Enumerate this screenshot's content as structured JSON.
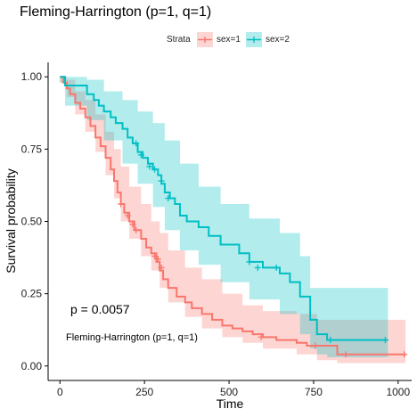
{
  "chart_data": {
    "type": "line",
    "title": "Fleming-Harrington (p=1, q=1)",
    "xlabel": "Time",
    "ylabel": "Survival probability",
    "xlim": [
      -35,
      1040
    ],
    "ylim": [
      -0.05,
      1.05
    ],
    "x_ticks": [
      0,
      250,
      500,
      750,
      1000
    ],
    "y_ticks": [
      0.0,
      0.25,
      0.5,
      0.75,
      1.0
    ],
    "y_tick_labels": [
      "0.00",
      "0.25",
      "0.50",
      "0.75",
      "1.00"
    ],
    "grid": false,
    "legend": {
      "title": "Strata",
      "position": "top"
    },
    "annotations": {
      "p_value": "p = 0.0057",
      "method": "Fleming-Harrington (p=1, q=1)"
    },
    "series": [
      {
        "name": "sex=1",
        "color": "#F8766D",
        "step": [
          [
            0,
            1.0
          ],
          [
            10,
            0.98
          ],
          [
            20,
            0.96
          ],
          [
            30,
            0.94
          ],
          [
            45,
            0.91
          ],
          [
            60,
            0.89
          ],
          [
            75,
            0.86
          ],
          [
            90,
            0.83
          ],
          [
            105,
            0.79
          ],
          [
            120,
            0.76
          ],
          [
            135,
            0.72
          ],
          [
            150,
            0.68
          ],
          [
            160,
            0.64
          ],
          [
            170,
            0.6
          ],
          [
            180,
            0.56
          ],
          [
            190,
            0.53
          ],
          [
            205,
            0.5
          ],
          [
            220,
            0.47
          ],
          [
            240,
            0.44
          ],
          [
            255,
            0.41
          ],
          [
            270,
            0.39
          ],
          [
            285,
            0.36
          ],
          [
            295,
            0.33
          ],
          [
            305,
            0.3
          ],
          [
            320,
            0.27
          ],
          [
            345,
            0.24
          ],
          [
            370,
            0.22
          ],
          [
            390,
            0.2
          ],
          [
            420,
            0.18
          ],
          [
            450,
            0.16
          ],
          [
            480,
            0.14
          ],
          [
            510,
            0.13
          ],
          [
            540,
            0.12
          ],
          [
            570,
            0.11
          ],
          [
            600,
            0.1
          ],
          [
            640,
            0.09
          ],
          [
            700,
            0.08
          ],
          [
            730,
            0.07
          ],
          [
            820,
            0.04
          ],
          [
            1022,
            0.04
          ]
        ],
        "lower": [
          [
            0,
            0.98
          ],
          [
            20,
            0.93
          ],
          [
            45,
            0.87
          ],
          [
            75,
            0.81
          ],
          [
            105,
            0.74
          ],
          [
            135,
            0.66
          ],
          [
            160,
            0.58
          ],
          [
            180,
            0.5
          ],
          [
            205,
            0.44
          ],
          [
            240,
            0.38
          ],
          [
            270,
            0.33
          ],
          [
            295,
            0.27
          ],
          [
            320,
            0.22
          ],
          [
            370,
            0.17
          ],
          [
            420,
            0.13
          ],
          [
            480,
            0.1
          ],
          [
            540,
            0.08
          ],
          [
            600,
            0.06
          ],
          [
            700,
            0.04
          ],
          [
            760,
            0.02
          ],
          [
            820,
            0.01
          ],
          [
            1022,
            0.01
          ]
        ],
        "upper": [
          [
            0,
            1.0
          ],
          [
            20,
            0.99
          ],
          [
            45,
            0.95
          ],
          [
            75,
            0.92
          ],
          [
            105,
            0.87
          ],
          [
            135,
            0.81
          ],
          [
            160,
            0.75
          ],
          [
            180,
            0.69
          ],
          [
            205,
            0.62
          ],
          [
            240,
            0.56
          ],
          [
            270,
            0.5
          ],
          [
            295,
            0.46
          ],
          [
            320,
            0.4
          ],
          [
            370,
            0.34
          ],
          [
            420,
            0.3
          ],
          [
            480,
            0.25
          ],
          [
            540,
            0.21
          ],
          [
            600,
            0.19
          ],
          [
            700,
            0.18
          ],
          [
            760,
            0.16
          ],
          [
            820,
            0.16
          ],
          [
            1022,
            0.16
          ]
        ],
        "censor": [
          [
            180,
            0.56
          ],
          [
            200,
            0.52
          ],
          [
            215,
            0.49
          ],
          [
            225,
            0.47
          ],
          [
            280,
            0.38
          ],
          [
            290,
            0.37
          ],
          [
            300,
            0.34
          ],
          [
            595,
            0.1
          ],
          [
            755,
            0.07
          ],
          [
            845,
            0.04
          ],
          [
            1018,
            0.04
          ]
        ]
      },
      {
        "name": "sex=2",
        "color": "#00BFC4",
        "step": [
          [
            0,
            1.0
          ],
          [
            15,
            0.97
          ],
          [
            70,
            0.97
          ],
          [
            80,
            0.94
          ],
          [
            100,
            0.92
          ],
          [
            115,
            0.9
          ],
          [
            130,
            0.88
          ],
          [
            150,
            0.86
          ],
          [
            165,
            0.84
          ],
          [
            185,
            0.82
          ],
          [
            200,
            0.79
          ],
          [
            215,
            0.77
          ],
          [
            230,
            0.74
          ],
          [
            245,
            0.72
          ],
          [
            260,
            0.7
          ],
          [
            275,
            0.68
          ],
          [
            290,
            0.66
          ],
          [
            300,
            0.63
          ],
          [
            310,
            0.6
          ],
          [
            325,
            0.58
          ],
          [
            340,
            0.56
          ],
          [
            355,
            0.52
          ],
          [
            375,
            0.5
          ],
          [
            410,
            0.48
          ],
          [
            440,
            0.45
          ],
          [
            475,
            0.42
          ],
          [
            530,
            0.39
          ],
          [
            560,
            0.36
          ],
          [
            600,
            0.34
          ],
          [
            650,
            0.32
          ],
          [
            680,
            0.29
          ],
          [
            710,
            0.24
          ],
          [
            740,
            0.16
          ],
          [
            760,
            0.11
          ],
          [
            790,
            0.09
          ],
          [
            970,
            0.09
          ]
        ],
        "lower": [
          [
            0,
            0.98
          ],
          [
            15,
            0.9
          ],
          [
            80,
            0.85
          ],
          [
            130,
            0.78
          ],
          [
            185,
            0.7
          ],
          [
            230,
            0.63
          ],
          [
            275,
            0.55
          ],
          [
            310,
            0.47
          ],
          [
            355,
            0.4
          ],
          [
            410,
            0.35
          ],
          [
            475,
            0.29
          ],
          [
            560,
            0.23
          ],
          [
            650,
            0.18
          ],
          [
            710,
            0.11
          ],
          [
            740,
            0.06
          ],
          [
            760,
            0.04
          ],
          [
            790,
            0.03
          ],
          [
            970,
            0.03
          ]
        ],
        "upper": [
          [
            0,
            1.0
          ],
          [
            15,
            1.0
          ],
          [
            80,
            0.99
          ],
          [
            130,
            0.95
          ],
          [
            185,
            0.92
          ],
          [
            230,
            0.88
          ],
          [
            275,
            0.84
          ],
          [
            310,
            0.78
          ],
          [
            355,
            0.7
          ],
          [
            410,
            0.62
          ],
          [
            475,
            0.56
          ],
          [
            560,
            0.51
          ],
          [
            650,
            0.46
          ],
          [
            710,
            0.38
          ],
          [
            740,
            0.27
          ],
          [
            970,
            0.27
          ]
        ],
        "censor": [
          [
            225,
            0.77
          ],
          [
            240,
            0.73
          ],
          [
            265,
            0.69
          ],
          [
            280,
            0.68
          ],
          [
            300,
            0.64
          ],
          [
            320,
            0.58
          ],
          [
            560,
            0.36
          ],
          [
            585,
            0.34
          ],
          [
            640,
            0.34
          ],
          [
            800,
            0.09
          ],
          [
            962,
            0.09
          ]
        ]
      }
    ]
  }
}
